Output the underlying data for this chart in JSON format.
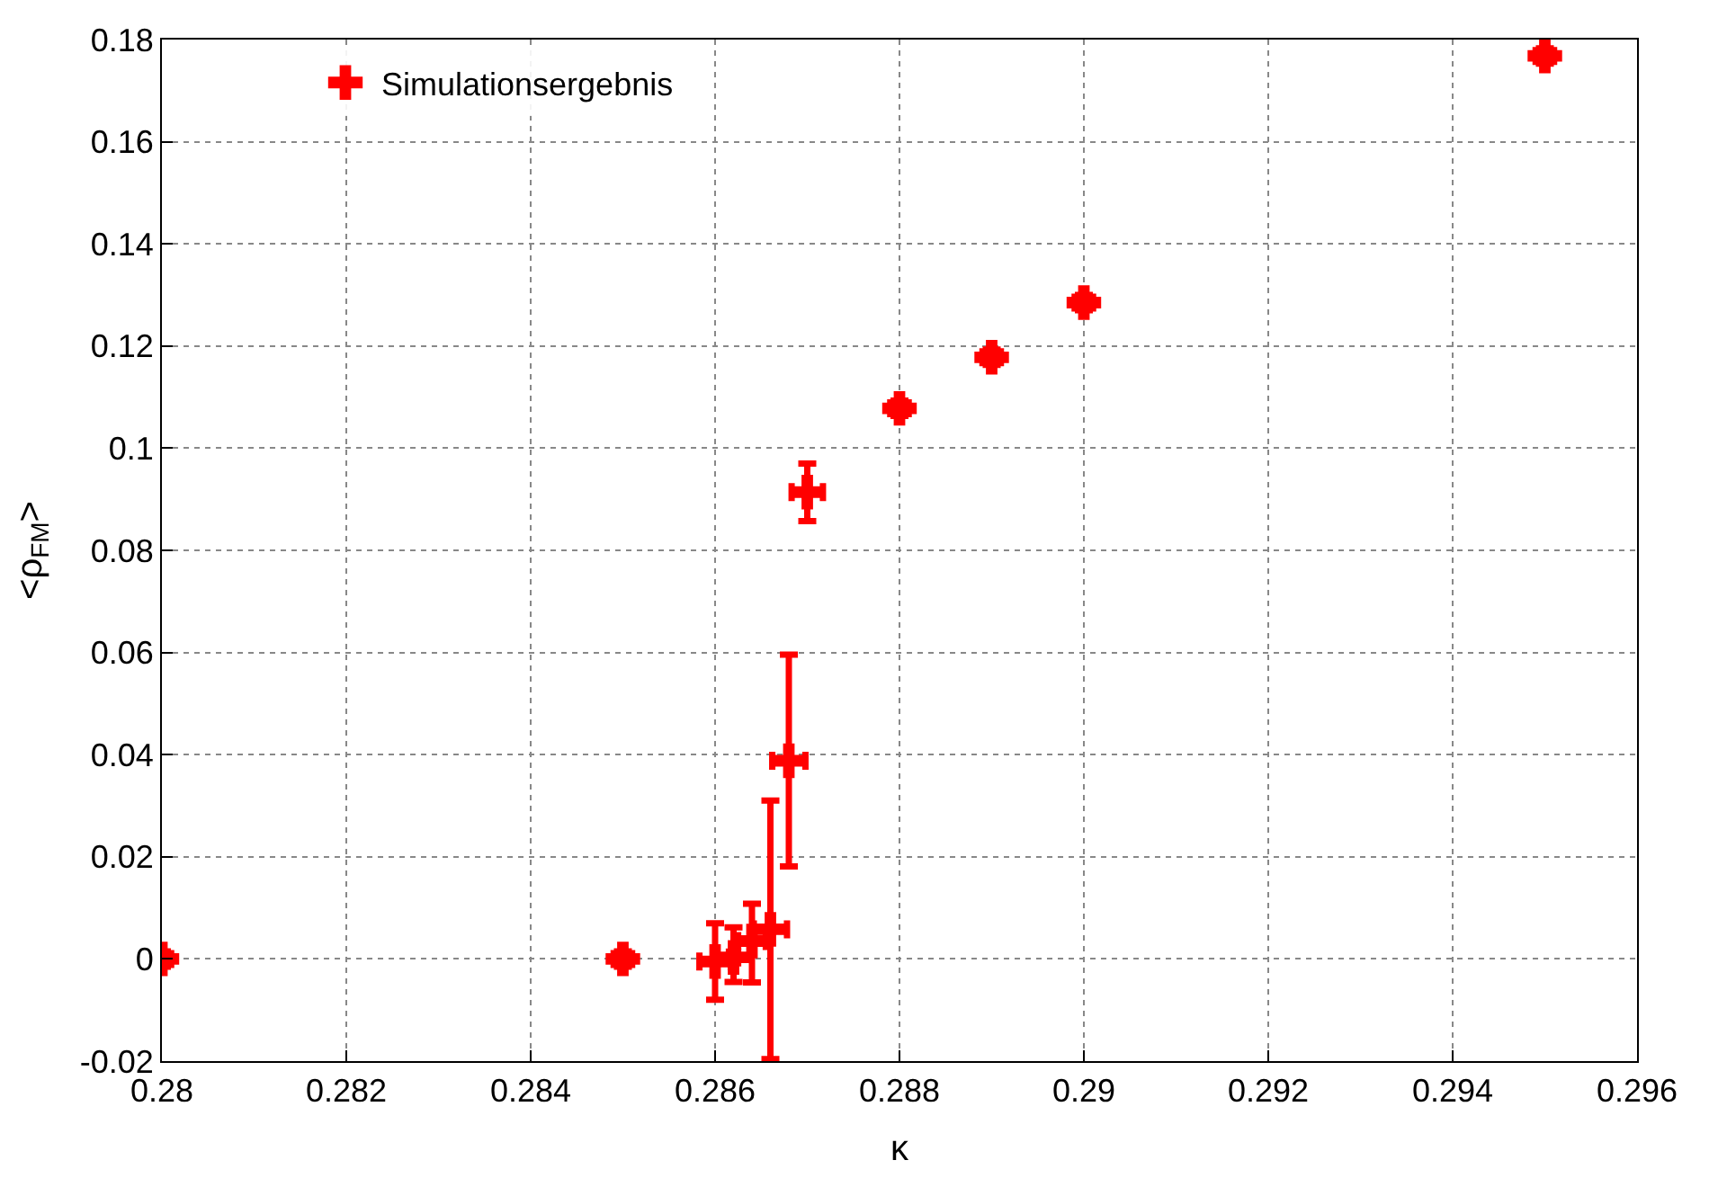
{
  "chart_data": {
    "type": "scatter",
    "xlabel": "κ",
    "ylabel": "<ρ$_{FM}$>",
    "x": [
      0.28,
      0.285,
      0.286,
      0.2862,
      0.2864,
      0.2866,
      0.2868,
      0.287,
      0.288,
      0.289,
      0.29,
      0.295
    ],
    "series": [
      {
        "name": "Simulationsergebnis",
        "color": "#ff0000",
        "values": [
          0.0,
          0.0,
          -0.0005,
          0.0003,
          0.0035,
          0.0058,
          0.0388,
          0.0914,
          0.1078,
          0.1178,
          0.1285,
          0.1768
        ],
        "errors": [
          0.0015,
          0.0015,
          [
            -0.008,
            0.007
          ],
          [
            -0.0045,
            0.0062
          ],
          [
            -0.0046,
            0.0108
          ],
          [
            -0.0196,
            0.031
          ],
          [
            0.0181,
            0.0596
          ],
          [
            0.0857,
            0.097
          ],
          0.0015,
          0.0015,
          0.0015,
          0.0015
        ],
        "xerrors": [
          0.0001,
          0.0001,
          0.00017,
          5e-05,
          0.00015,
          0.00018,
          0.00018,
          0.00017,
          0.0001,
          0.0001,
          0.0001,
          0.0001
        ]
      }
    ],
    "xlim": [
      0.28,
      0.296
    ],
    "xticks": [
      0.28,
      0.282,
      0.284,
      0.286,
      0.288,
      0.29,
      0.292,
      0.294,
      0.296
    ],
    "ylim": [
      -0.02,
      0.18
    ],
    "yticks": [
      -0.02,
      0,
      0.02,
      0.04,
      0.06,
      0.08,
      0.1,
      0.12,
      0.14,
      0.16,
      0.18
    ],
    "grid": true,
    "legend": "top left",
    "marker": "cross"
  }
}
